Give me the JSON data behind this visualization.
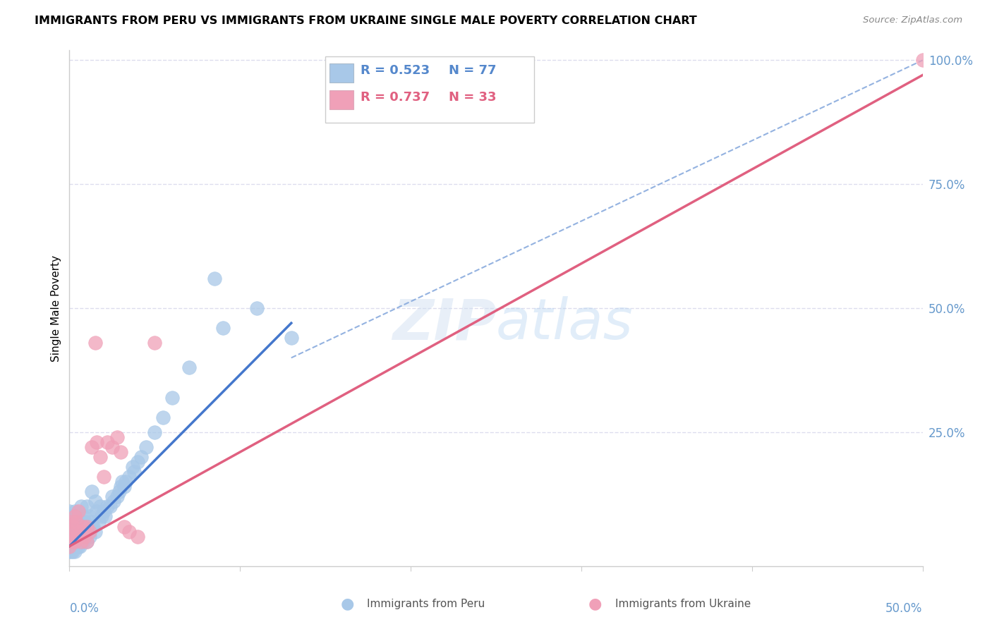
{
  "title": "IMMIGRANTS FROM PERU VS IMMIGRANTS FROM UKRAINE SINGLE MALE POVERTY CORRELATION CHART",
  "source": "Source: ZipAtlas.com",
  "ylabel": "Single Male Poverty",
  "xlim": [
    0.0,
    0.5
  ],
  "ylim": [
    -0.02,
    1.02
  ],
  "ylim_display": [
    0.0,
    1.0
  ],
  "peru_R": 0.523,
  "peru_N": 77,
  "ukraine_R": 0.737,
  "ukraine_N": 33,
  "peru_color": "#a8c8e8",
  "ukraine_color": "#f0a0b8",
  "peru_line_color": "#4477cc",
  "ukraine_line_color": "#e06080",
  "diagonal_color": "#88aadd",
  "grid_color": "#ddddee",
  "tick_label_color": "#6699cc",
  "background_color": "#ffffff",
  "legend_text_color": "#5588cc",
  "watermark_color": "#ddeeff",
  "peru_scatter_x": [
    0.0,
    0.0,
    0.0,
    0.0,
    0.0,
    0.0,
    0.001,
    0.001,
    0.001,
    0.001,
    0.001,
    0.002,
    0.002,
    0.002,
    0.002,
    0.003,
    0.003,
    0.003,
    0.003,
    0.004,
    0.004,
    0.004,
    0.004,
    0.005,
    0.005,
    0.005,
    0.006,
    0.006,
    0.006,
    0.007,
    0.007,
    0.007,
    0.008,
    0.008,
    0.009,
    0.009,
    0.01,
    0.01,
    0.01,
    0.011,
    0.012,
    0.012,
    0.013,
    0.013,
    0.014,
    0.015,
    0.015,
    0.016,
    0.017,
    0.018,
    0.019,
    0.02,
    0.021,
    0.022,
    0.024,
    0.025,
    0.026,
    0.028,
    0.029,
    0.03,
    0.031,
    0.032,
    0.033,
    0.035,
    0.037,
    0.038,
    0.04,
    0.042,
    0.045,
    0.05,
    0.055,
    0.06,
    0.07,
    0.085,
    0.09,
    0.11,
    0.13
  ],
  "peru_scatter_y": [
    0.01,
    0.02,
    0.03,
    0.05,
    0.07,
    0.09,
    0.01,
    0.02,
    0.04,
    0.06,
    0.08,
    0.01,
    0.03,
    0.05,
    0.07,
    0.01,
    0.03,
    0.06,
    0.09,
    0.02,
    0.04,
    0.06,
    0.08,
    0.02,
    0.04,
    0.07,
    0.02,
    0.04,
    0.07,
    0.03,
    0.06,
    0.1,
    0.03,
    0.08,
    0.04,
    0.07,
    0.03,
    0.06,
    0.1,
    0.05,
    0.04,
    0.08,
    0.07,
    0.13,
    0.06,
    0.05,
    0.11,
    0.09,
    0.07,
    0.1,
    0.08,
    0.09,
    0.08,
    0.1,
    0.1,
    0.12,
    0.11,
    0.12,
    0.13,
    0.14,
    0.15,
    0.14,
    0.15,
    0.16,
    0.18,
    0.17,
    0.19,
    0.2,
    0.22,
    0.25,
    0.28,
    0.32,
    0.38,
    0.56,
    0.46,
    0.5,
    0.44
  ],
  "ukraine_scatter_x": [
    0.0,
    0.0,
    0.001,
    0.001,
    0.002,
    0.002,
    0.003,
    0.003,
    0.004,
    0.004,
    0.005,
    0.005,
    0.006,
    0.007,
    0.008,
    0.009,
    0.01,
    0.01,
    0.012,
    0.013,
    0.015,
    0.016,
    0.018,
    0.02,
    0.022,
    0.025,
    0.028,
    0.03,
    0.032,
    0.035,
    0.04,
    0.05,
    0.5
  ],
  "ukraine_scatter_y": [
    0.02,
    0.05,
    0.03,
    0.07,
    0.04,
    0.06,
    0.03,
    0.08,
    0.04,
    0.07,
    0.04,
    0.09,
    0.05,
    0.03,
    0.06,
    0.04,
    0.03,
    0.06,
    0.05,
    0.22,
    0.43,
    0.23,
    0.2,
    0.16,
    0.23,
    0.22,
    0.24,
    0.21,
    0.06,
    0.05,
    0.04,
    0.43,
    1.0
  ],
  "peru_line_x0": 0.0,
  "peru_line_x1": 0.13,
  "peru_line_y0": 0.02,
  "peru_line_y1": 0.47,
  "ukraine_line_x0": 0.0,
  "ukraine_line_x1": 0.5,
  "ukraine_line_y0": 0.02,
  "ukraine_line_y1": 0.97,
  "diag_line_x0": 0.13,
  "diag_line_x1": 0.5,
  "diag_line_y0": 0.4,
  "diag_line_y1": 1.0
}
